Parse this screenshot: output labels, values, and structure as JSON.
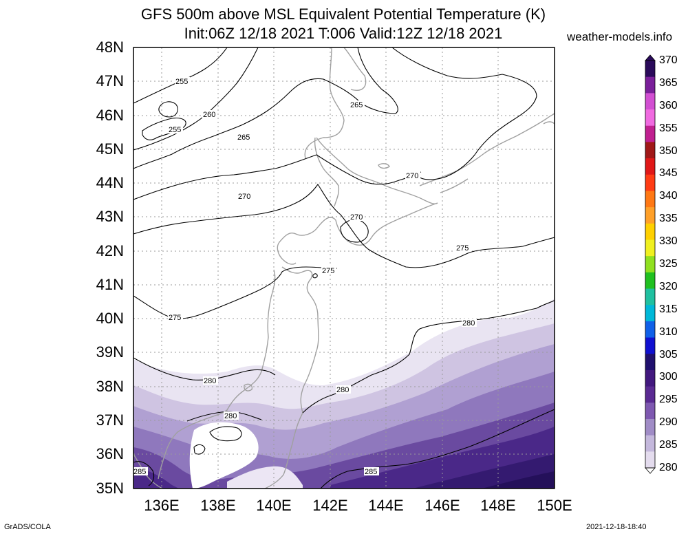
{
  "title_line1": "GFS 500m above MSL Equivalent Potential Temperature (K)",
  "title_line2": "Init:06Z 12/18 2021 T:006 Valid:12Z 12/18 2021",
  "brand": "weather-models.info",
  "lat_labels": [
    "48N",
    "47N",
    "46N",
    "45N",
    "44N",
    "43N",
    "42N",
    "41N",
    "40N",
    "39N",
    "38N",
    "37N",
    "36N",
    "35N"
  ],
  "lon_labels": [
    "136E",
    "138E",
    "140E",
    "142E",
    "144E",
    "146E",
    "148E",
    "150E"
  ],
  "colorbar": {
    "labels": [
      "370",
      "365",
      "360",
      "355",
      "350",
      "345",
      "340",
      "335",
      "330",
      "325",
      "320",
      "315",
      "310",
      "305",
      "300",
      "295",
      "290",
      "285",
      "280"
    ],
    "colors": [
      "#2a0a5a",
      "#7a1f9a",
      "#d24fd2",
      "#f06ae0",
      "#c02090",
      "#a01818",
      "#e01818",
      "#ff3c14",
      "#ff7814",
      "#ffa028",
      "#ffd000",
      "#f0f020",
      "#90e020",
      "#20c020",
      "#20c0a0",
      "#00b8d8",
      "#1060e8",
      "#1010d0",
      "#20106e",
      "#42187e",
      "#5a2a92",
      "#7e58b0",
      "#a08cc6",
      "#c4b8dc",
      "#e4dcee"
    ]
  },
  "contour_labels": [
    "255",
    "255",
    "260",
    "265",
    "265",
    "270",
    "270",
    "270",
    "275",
    "275",
    "275",
    "280",
    "280",
    "280",
    "280",
    "285",
    "285"
  ],
  "footer_left": "GrADS/COLA",
  "footer_right": "2021-12-18-18:40"
}
